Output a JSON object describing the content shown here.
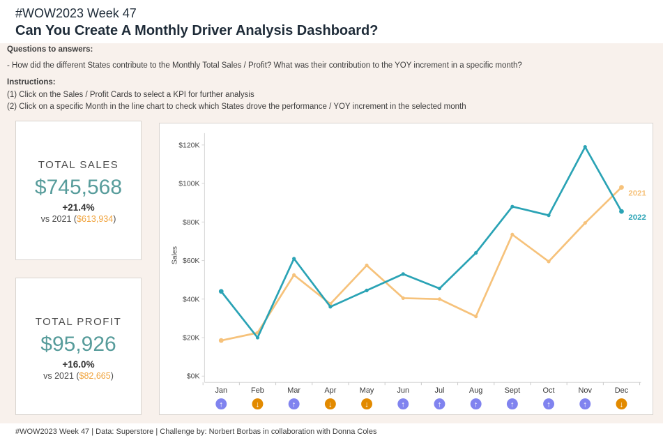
{
  "header": {
    "tag": "#WOW2023 Week 47",
    "title": "Can You Create A Monthly Driver Analysis Dashboard?"
  },
  "info": {
    "questions_heading": "Questions to answers:",
    "question": "- How did the different States contribute to the Monthly Total Sales / Profit? What was their contribution to the YOY increment in a specific month?",
    "instructions_heading": "Instructions:",
    "instructions": [
      "(1) Click on the Sales / Profit Cards to select a KPI for further analysis",
      "(2) Click on a specific Month in the line chart to check which States drove the performance  / YOY increment in the selected month"
    ]
  },
  "kpi_cards": {
    "sales": {
      "title": "TOTAL SALES",
      "value": "$745,568",
      "change": "+21.4%",
      "vs_prefix": "vs 2021 (",
      "vs_value": "$613,934",
      "vs_suffix": ")"
    },
    "profit": {
      "title": "TOTAL PROFIT",
      "value": "$95,926",
      "change": "+16.0%",
      "vs_prefix": "vs 2021 (",
      "vs_value": "$82,665",
      "vs_suffix": ")"
    }
  },
  "chart_data": {
    "type": "line",
    "title": "",
    "xlabel": "",
    "ylabel": "Sales",
    "categories": [
      "Jan",
      "Feb",
      "Mar",
      "Apr",
      "May",
      "Jun",
      "Jul",
      "Aug",
      "Sept",
      "Oct",
      "Nov",
      "Dec"
    ],
    "y_tick_labels": [
      "$0K",
      "$20K",
      "$40K",
      "$60K",
      "$80K",
      "$100K",
      "$120K"
    ],
    "y_tick_values_k": [
      0,
      20,
      40,
      60,
      80,
      100,
      120
    ],
    "ylim_k": [
      0,
      130
    ],
    "grid": false,
    "legend_position": "line-end-labels",
    "series": [
      {
        "name": "2021",
        "color": "#F6C27B",
        "values_k": [
          18.5,
          22.5,
          52.5,
          37.5,
          57.5,
          40.5,
          40,
          31,
          73.5,
          59.5,
          79.5,
          98
        ]
      },
      {
        "name": "2022",
        "color": "#2AA3B5",
        "values_k": [
          44,
          20,
          61,
          36,
          44.5,
          53,
          45.5,
          64,
          88,
          83.5,
          119,
          85.5
        ]
      }
    ],
    "yoy_direction": [
      "up",
      "down",
      "up",
      "down",
      "down",
      "up",
      "up",
      "up",
      "up",
      "up",
      "up",
      "down"
    ],
    "arrow_glyphs": {
      "up": "↑",
      "down": "↓"
    },
    "arrow_colors": {
      "up": "#8083EF",
      "down": "#E28A00"
    }
  },
  "colors": {
    "kpi_value_teal": "#579c9b",
    "kpi_vs_orange": "#f0a33c",
    "band_background": "#f8f1ec",
    "series_2021": "#F6C27B",
    "series_2022": "#2AA3B5",
    "arrow_up": "#8083EF",
    "arrow_down": "#E28A00"
  },
  "footer": {
    "text": "#WOW2023 Week 47 | Data: Superstore | Challenge by: Norbert Borbas in collaboration with Donna Coles"
  }
}
